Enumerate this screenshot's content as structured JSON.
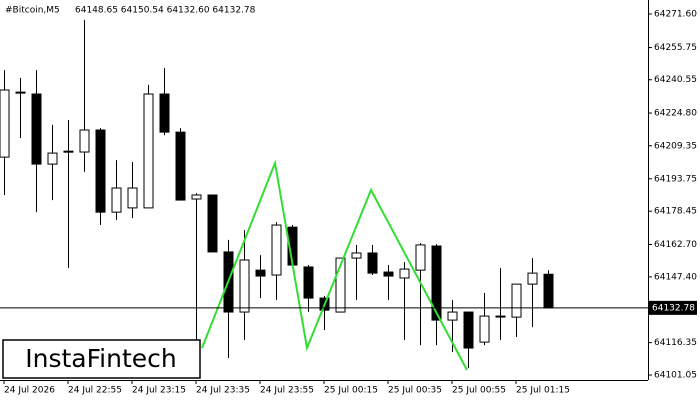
{
  "header": {
    "symbol": "#Bitcoin,M5",
    "ohlc": "64148.65 64150.54 64132.60 64132.78"
  },
  "logo": "InstaFintech",
  "chart_data": {
    "type": "candlestick",
    "categories": [
      "24 Jul 2026",
      null,
      null,
      null,
      "24 Jul 22:55",
      null,
      null,
      null,
      "24 Jul 23:15",
      null,
      null,
      null,
      "24 Jul 23:35",
      null,
      null,
      null,
      "24 Jul 23:55",
      null,
      null,
      null,
      "25 Jul 00:15",
      null,
      null,
      null,
      "25 Jul 00:35",
      null,
      null,
      null,
      "25 Jul 00:55",
      null,
      null,
      null,
      "25 Jul 01:15",
      null,
      null
    ],
    "open": [
      64204.0,
      64234.7,
      64233.8,
      64200.7,
      64206.4,
      64206.4,
      64216.8,
      64178.0,
      64180.0,
      64180.0,
      64233.8,
      64215.8,
      64184.2,
      64186.1,
      64159.2,
      64130.8,
      64150.6,
      64148.3,
      64170.9,
      64152.1,
      64137.4,
      64130.8,
      64156.3,
      64158.7,
      64149.7,
      64146.9,
      64150.6,
      64162.0,
      64127.0,
      64130.8,
      64116.6,
      64128.9,
      64128.4,
      64144.0,
      64148.65
    ],
    "high": [
      64245.1,
      64241.4,
      64245.1,
      64219.2,
      64221.5,
      64268.8,
      64217.7,
      64202.6,
      64201.7,
      64238.1,
      64246.1,
      64217.7,
      64187.0,
      64186.1,
      64164.9,
      64169.5,
      64157.7,
      64173.3,
      64171.9,
      64153.0,
      64138.4,
      64156.3,
      64162.5,
      64162.5,
      64153.0,
      64154.4,
      64163.4,
      64162.9,
      64136.5,
      64130.8,
      64139.8,
      64151.6,
      64144.0,
      64156.3,
      64150.54
    ],
    "low": [
      64186.1,
      64213.0,
      64178.0,
      64183.7,
      64151.6,
      64197.0,
      64171.9,
      64174.3,
      64175.2,
      64180.0,
      64214.4,
      64183.7,
      64115.2,
      64159.2,
      64109.1,
      64117.6,
      64137.4,
      64136.5,
      64153.0,
      64130.8,
      64122.3,
      64130.8,
      64136.5,
      64148.3,
      64136.5,
      64117.6,
      64115.2,
      64115.2,
      64111.9,
      64104.3,
      64115.2,
      64117.6,
      64119.0,
      64123.7,
      64132.6
    ],
    "close": [
      64235.7,
      64234.3,
      64200.7,
      64205.9,
      64206.8,
      64216.8,
      64178.0,
      64189.4,
      64189.4,
      64233.8,
      64215.8,
      64183.7,
      64186.1,
      64159.2,
      64130.8,
      64155.4,
      64147.8,
      64171.9,
      64153.0,
      64137.4,
      64131.7,
      64156.3,
      64158.7,
      64149.2,
      64147.8,
      64151.1,
      64162.5,
      64127.0,
      64130.8,
      64113.8,
      64128.9,
      64128.9,
      64144.0,
      64149.2,
      64132.78
    ],
    "current_price": 64132.78,
    "up_color": "#ffffff",
    "down_color": "#000000",
    "ylim": [
      64098.7,
      64276.8
    ],
    "yticks": [
      {
        "value": 64271.6,
        "label": "64271.60"
      },
      64255.75,
      64240.55,
      {
        "value": 64224.8,
        "label": "64224.80"
      },
      64209.35,
      64193.75,
      64178.45,
      {
        "value": 64162.7,
        "label": "64162.70"
      },
      {
        "value": 64147.4,
        "label": "64147.40"
      },
      64116.35,
      64101.05
    ]
  }
}
